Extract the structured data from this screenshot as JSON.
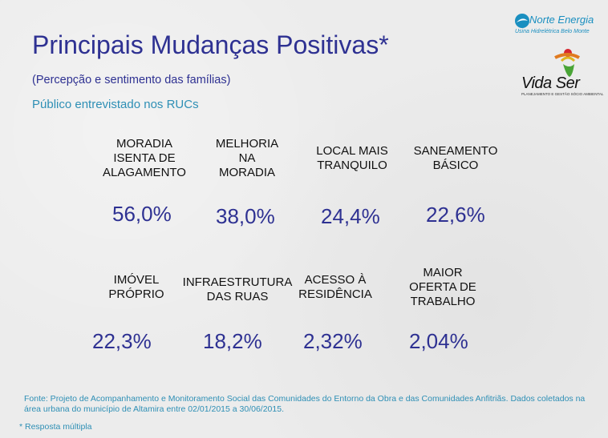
{
  "header": {
    "title": "Principais Mudanças Positivas*",
    "subtitle": "(Percepção e sentimento das famílias)",
    "public": "Público entrevistado nos RUCs"
  },
  "logos": {
    "norte_energia": {
      "name": "Norte Energia",
      "sub": "Usina Hidrelétrica Belo Monte"
    },
    "vida_ser": {
      "name": "Vida Ser",
      "sub": "PLANEJAMENTO E GESTÃO SÓCIO AMBIENTAL"
    }
  },
  "items": [
    {
      "label": "MORADIA\nISENTA DE\nALAGAMENTO",
      "value": "56,0%"
    },
    {
      "label": "MELHORIA\nNA\nMORADIA",
      "value": "38,0%"
    },
    {
      "label": "LOCAL MAIS\nTRANQUILO",
      "value": "24,4%"
    },
    {
      "label": "SANEAMENTO\nBÁSICO",
      "value": "22,6%"
    },
    {
      "label": "IMÓVEL\nPRÓPRIO",
      "value": "22,3%"
    },
    {
      "label": "INFRAESTRUTURA\nDAS RUAS",
      "value": "18,2%"
    },
    {
      "label": "ACESSO À\nRESIDÊNCIA",
      "value": "2,32%"
    },
    {
      "label": "MAIOR\nOFERTA DE\nTRABALHO",
      "value": "2,04%"
    }
  ],
  "footer": {
    "source": "Fonte: Projeto de Acompanhamento e Monitoramento Social das Comunidades do Entorno da Obra e das Comunidades Anfitriãs. Dados coletados na área urbana do município de Altamira entre 02/01/2015 a 30/06/2015.",
    "note": "* Resposta múltipla"
  },
  "colors": {
    "title": "#2e3192",
    "accent": "#2e8fb5",
    "label": "#111111"
  }
}
